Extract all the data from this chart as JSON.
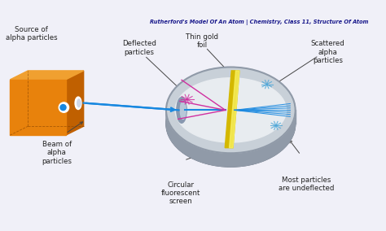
{
  "bg_color": "#f0f0f8",
  "box_color": "#e8820c",
  "box_side": "#c06000",
  "box_top": "#f0a030",
  "screen_top_color": "#c8d0d8",
  "screen_inner_color": "#e8ecf0",
  "screen_rim_color": "#909aa8",
  "screen_rim_dark": "#606878",
  "foil_color": "#d4b800",
  "foil_light": "#f0d840",
  "foil_highlight": "#f8f060",
  "beam_color": "#1888e0",
  "deflected_color": "#d030a0",
  "scattered_color": "#50a8d8",
  "slit_color": "#8898b0",
  "slit_light": "#b8c8d8",
  "arrow_color": "#444444",
  "text_color": "#222222",
  "title": "Rutherford's Model Of An Atom | Chemistry, Class 11, Structure Of Atom",
  "label_source": "Source of\nalpha particles",
  "label_beam": "Beam of\nalpha\nparticles",
  "label_deflected": "Deflected\nparticles",
  "label_foil": "Thin gold\nfoil",
  "label_scattered": "Scattered\nalpha\nparticles",
  "label_screen": "Circular\nfluorescent\nscreen",
  "label_undeflected": "Most particles\nare undeflected"
}
